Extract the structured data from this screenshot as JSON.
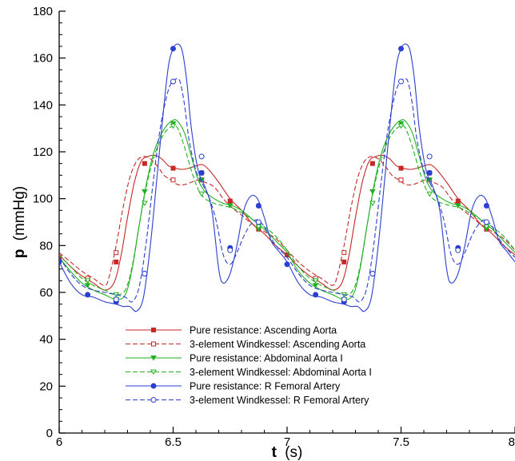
{
  "chart_data": {
    "type": "line",
    "title": "",
    "xlabel": {
      "bold": "t",
      "rest": "(s)"
    },
    "ylabel": {
      "bold": "p",
      "rest": "(mmHg)"
    },
    "xlim": [
      6,
      8
    ],
    "ylim": [
      0,
      180
    ],
    "xticks": [
      6,
      6.5,
      7,
      7.5,
      8
    ],
    "xtick_labels": [
      "6",
      "6.5",
      "7",
      "7.5",
      "8"
    ],
    "yticks": [
      0,
      20,
      40,
      60,
      80,
      100,
      120,
      140,
      160,
      180
    ],
    "ytick_labels": [
      "0",
      "20",
      "40",
      "60",
      "80",
      "100",
      "120",
      "140",
      "160",
      "180"
    ],
    "grid": false,
    "legend_position": "bottom-left",
    "series": [
      {
        "name": "Pure resistance: Ascending Aorta",
        "color": "#c62828",
        "dashed": false,
        "marker": "square",
        "filled": true,
        "x": [
          6.0,
          6.05,
          6.1,
          6.15,
          6.2,
          6.24,
          6.27,
          6.3,
          6.33,
          6.36,
          6.39,
          6.42,
          6.45,
          6.48,
          6.51,
          6.54,
          6.57,
          6.6,
          6.63,
          6.66,
          6.7,
          6.75,
          6.8,
          6.85,
          6.9,
          6.95,
          7.0,
          7.05,
          7.1,
          7.15,
          7.2,
          7.24,
          7.27,
          7.3,
          7.33,
          7.36,
          7.39,
          7.42,
          7.45,
          7.48,
          7.51,
          7.54,
          7.57,
          7.6,
          7.63,
          7.66,
          7.7,
          7.75,
          7.8,
          7.85,
          7.9,
          7.95,
          8.0
        ],
        "y": [
          76,
          71,
          67,
          64,
          61,
          64,
          75,
          92,
          107,
          116,
          118,
          118.5,
          117,
          114,
          113,
          112.5,
          113,
          114,
          114.5,
          112,
          107,
          100,
          95,
          89,
          85,
          80,
          76,
          71,
          67,
          64,
          61,
          64,
          75,
          92,
          107,
          116,
          118,
          118.5,
          117,
          114,
          113,
          112.5,
          113,
          114,
          114.5,
          112,
          107,
          100,
          95,
          89,
          85,
          80,
          76
        ],
        "mx": [
          6.0,
          6.25,
          6.375,
          6.5,
          6.625,
          6.75,
          6.875,
          7.0,
          7.25,
          7.375,
          7.5,
          7.625,
          7.75,
          7.875
        ],
        "my": [
          75,
          73,
          115,
          113,
          111,
          99,
          87,
          76,
          73,
          115,
          113,
          111,
          99,
          87
        ]
      },
      {
        "name": "3-element Windkessel: Ascending Aorta",
        "color": "#c62828",
        "dashed": true,
        "marker": "square",
        "filled": false,
        "x": [
          6.0,
          6.05,
          6.1,
          6.15,
          6.2,
          6.22,
          6.25,
          6.28,
          6.31,
          6.34,
          6.37,
          6.4,
          6.43,
          6.46,
          6.49,
          6.52,
          6.55,
          6.58,
          6.61,
          6.64,
          6.68,
          6.72,
          6.76,
          6.8,
          6.85,
          6.9,
          6.95,
          7.0,
          7.05,
          7.1,
          7.15,
          7.2,
          7.22,
          7.25,
          7.28,
          7.31,
          7.34,
          7.37,
          7.4,
          7.43,
          7.46,
          7.49,
          7.52,
          7.55,
          7.58,
          7.61,
          7.64,
          7.68,
          7.72,
          7.76,
          7.8,
          7.85,
          7.9,
          7.95,
          8.0
        ],
        "y": [
          77,
          73,
          69,
          66,
          63,
          67,
          80,
          96,
          109,
          116,
          118,
          117,
          114,
          110,
          108,
          106,
          106,
          107,
          108,
          107,
          105,
          100,
          96,
          93,
          89,
          86,
          83,
          78,
          73,
          69,
          66,
          63,
          67,
          80,
          96,
          109,
          116,
          118,
          117,
          114,
          110,
          108,
          106,
          106,
          107,
          108,
          107,
          105,
          100,
          96,
          93,
          89,
          86,
          83,
          78
        ],
        "mx": [
          6.125,
          6.25,
          6.5,
          6.625,
          6.875,
          7.125,
          7.25,
          7.5,
          7.625,
          7.875
        ],
        "my": [
          66,
          77,
          108,
          108,
          88,
          66,
          77,
          108,
          108,
          88
        ]
      },
      {
        "name": "Pure resistance: Abdominal Aorta I",
        "color": "#22b022",
        "dashed": false,
        "marker": "triangle-down",
        "filled": true,
        "x": [
          6.0,
          6.05,
          6.1,
          6.15,
          6.2,
          6.25,
          6.29,
          6.32,
          6.35,
          6.38,
          6.41,
          6.44,
          6.47,
          6.5,
          6.52,
          6.55,
          6.58,
          6.61,
          6.64,
          6.68,
          6.72,
          6.76,
          6.8,
          6.85,
          6.9,
          6.95,
          7.0,
          7.05,
          7.1,
          7.15,
          7.2,
          7.25,
          7.29,
          7.32,
          7.35,
          7.38,
          7.41,
          7.44,
          7.47,
          7.5,
          7.52,
          7.55,
          7.58,
          7.61,
          7.64,
          7.68,
          7.72,
          7.76,
          7.8,
          7.85,
          7.9,
          7.95,
          8.0
        ],
        "y": [
          75,
          69,
          64,
          61,
          59,
          57,
          59,
          70,
          88,
          105,
          118,
          126,
          131,
          133.5,
          133,
          128,
          118,
          108,
          103,
          100,
          98,
          97,
          95,
          91,
          87,
          82,
          77,
          69,
          64,
          61,
          59,
          57,
          59,
          70,
          88,
          105,
          118,
          126,
          131,
          133.5,
          133,
          128,
          118,
          108,
          103,
          100,
          98,
          97,
          95,
          91,
          87,
          82,
          77
        ],
        "mx": [
          6.125,
          6.25,
          6.375,
          6.5,
          6.625,
          6.75,
          6.875,
          7.125,
          7.25,
          7.375,
          7.5,
          7.625,
          7.75,
          7.875
        ],
        "my": [
          63,
          57,
          103,
          132,
          108,
          97,
          87,
          63,
          57,
          103,
          132,
          108,
          97,
          87
        ]
      },
      {
        "name": "3-element Windkessel: Abdominal Aorta I",
        "color": "#22b022",
        "dashed": true,
        "marker": "triangle-down",
        "filled": false,
        "x": [
          6.0,
          6.05,
          6.1,
          6.15,
          6.2,
          6.25,
          6.29,
          6.32,
          6.35,
          6.38,
          6.41,
          6.44,
          6.47,
          6.5,
          6.52,
          6.55,
          6.58,
          6.61,
          6.64,
          6.68,
          6.72,
          6.76,
          6.8,
          6.85,
          6.9,
          6.95,
          7.0,
          7.05,
          7.1,
          7.15,
          7.2,
          7.25,
          7.29,
          7.32,
          7.35,
          7.38,
          7.41,
          7.44,
          7.47,
          7.5,
          7.52,
          7.55,
          7.58,
          7.61,
          7.64,
          7.68,
          7.72,
          7.76,
          7.8,
          7.85,
          7.9,
          7.95,
          8.0
        ],
        "y": [
          76,
          71,
          66,
          63,
          61,
          59,
          61,
          71,
          88,
          104,
          116,
          124,
          129,
          131,
          130,
          122,
          112,
          104,
          100,
          98,
          97,
          96,
          94,
          91,
          88,
          84,
          78,
          71,
          66,
          63,
          61,
          59,
          61,
          71,
          88,
          104,
          116,
          124,
          129,
          131,
          130,
          122,
          112,
          104,
          100,
          98,
          97,
          96,
          94,
          91,
          88,
          84,
          78
        ],
        "mx": [
          6.125,
          6.25,
          6.375,
          6.5,
          6.625,
          6.875,
          7.125,
          7.25,
          7.375,
          7.5,
          7.625,
          7.875
        ],
        "my": [
          65,
          59,
          98,
          131,
          102,
          88,
          65,
          59,
          98,
          131,
          102,
          88
        ]
      },
      {
        "name": "Pure resistance: R Femoral Artery",
        "color": "#2b3fd0",
        "dashed": false,
        "marker": "circle",
        "filled": true,
        "x": [
          6.0,
          6.05,
          6.1,
          6.15,
          6.2,
          6.25,
          6.28,
          6.31,
          6.34,
          6.37,
          6.4,
          6.43,
          6.46,
          6.48,
          6.5,
          6.52,
          6.54,
          6.56,
          6.58,
          6.61,
          6.64,
          6.67,
          6.7,
          6.72,
          6.75,
          6.78,
          6.81,
          6.84,
          6.87,
          6.9,
          6.93,
          6.96,
          7.0,
          7.05,
          7.1,
          7.15,
          7.2,
          7.25,
          7.28,
          7.31,
          7.34,
          7.37,
          7.4,
          7.43,
          7.46,
          7.48,
          7.5,
          7.52,
          7.54,
          7.56,
          7.58,
          7.61,
          7.64,
          7.67,
          7.7,
          7.72,
          7.75,
          7.78,
          7.81,
          7.84,
          7.87,
          7.9,
          7.93,
          7.96,
          8.0
        ],
        "y": [
          73,
          64,
          59,
          58,
          56,
          55,
          54,
          54,
          52,
          58,
          80,
          110,
          140,
          157,
          164,
          166,
          163,
          150,
          130,
          112,
          105,
          95,
          70,
          64,
          68,
          80,
          95,
          101,
          100,
          92,
          82,
          78,
          73,
          64,
          59,
          58,
          56,
          55,
          54,
          54,
          52,
          58,
          80,
          110,
          140,
          157,
          164,
          166,
          163,
          150,
          130,
          112,
          105,
          95,
          70,
          64,
          68,
          80,
          95,
          101,
          100,
          92,
          82,
          78,
          73
        ],
        "mx": [
          6.0,
          6.125,
          6.25,
          6.375,
          6.5,
          6.625,
          6.75,
          6.875,
          7.0,
          7.125,
          7.25,
          7.375,
          7.5,
          7.625,
          7.75,
          7.875
        ],
        "my": [
          73,
          59,
          56,
          68,
          164,
          111,
          79,
          97,
          72,
          59,
          56,
          68,
          164,
          111,
          79,
          97
        ]
      },
      {
        "name": "3-element Windkessel: R Femoral Artery",
        "color": "#2b3fd0",
        "dashed": true,
        "marker": "circle",
        "filled": false,
        "x": [
          6.0,
          6.05,
          6.1,
          6.15,
          6.2,
          6.25,
          6.29,
          6.32,
          6.35,
          6.38,
          6.41,
          6.44,
          6.47,
          6.49,
          6.51,
          6.53,
          6.55,
          6.57,
          6.6,
          6.63,
          6.66,
          6.69,
          6.72,
          6.75,
          6.78,
          6.81,
          6.84,
          6.87,
          6.9,
          6.93,
          6.96,
          7.0,
          7.05,
          7.1,
          7.15,
          7.2,
          7.25,
          7.29,
          7.32,
          7.35,
          7.38,
          7.41,
          7.44,
          7.47,
          7.49,
          7.51,
          7.53,
          7.55,
          7.57,
          7.6,
          7.63,
          7.66,
          7.69,
          7.72,
          7.75,
          7.78,
          7.81,
          7.84,
          7.87,
          7.9,
          7.93,
          7.96,
          8.0
        ],
        "y": [
          75,
          68,
          63,
          61,
          60,
          59,
          58,
          56,
          62,
          80,
          105,
          128,
          143,
          149,
          151,
          150,
          140,
          125,
          112,
          106,
          100,
          90,
          76,
          72,
          77,
          84,
          89,
          91,
          88,
          83,
          79,
          75,
          68,
          63,
          61,
          60,
          59,
          58,
          56,
          62,
          80,
          105,
          128,
          143,
          149,
          151,
          150,
          140,
          125,
          112,
          106,
          100,
          90,
          76,
          72,
          77,
          84,
          89,
          91,
          88,
          83,
          79,
          75
        ],
        "mx": [
          6.25,
          6.375,
          6.5,
          6.625,
          6.75,
          6.875,
          7.25,
          7.375,
          7.5,
          7.625,
          7.75,
          7.875
        ],
        "my": [
          57,
          68,
          150,
          118,
          78,
          90,
          57,
          68,
          150,
          118,
          78,
          90
        ]
      }
    ]
  }
}
